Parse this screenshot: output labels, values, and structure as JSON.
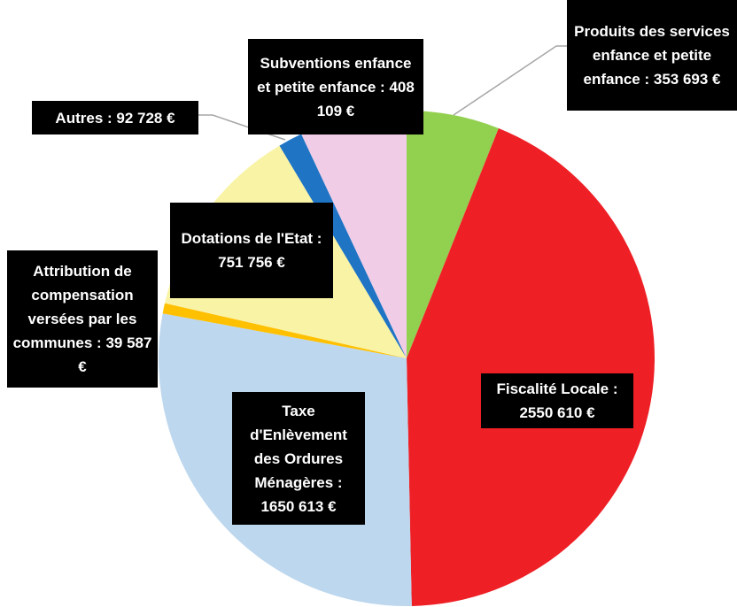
{
  "chart_data": {
    "type": "pie",
    "categories": [
      "Produits des services enfance et petite enfance :",
      "Fiscalité Locale :",
      "Taxe d'Enlèvement des Ordures Ménagères :",
      "Attribution de compensation versées par les communes :",
      "Dotations de l'Etat :",
      "Autres :",
      "Subventions enfance et petite enfance :"
    ],
    "values": [
      353693,
      2550610,
      1650613,
      39587,
      751756,
      92728,
      408109
    ],
    "value_labels": [
      "353 693 €",
      "2550 610 €",
      "1650 613 €",
      "39 587 €",
      "751 756 €",
      "92 728 €",
      "408 109 €"
    ],
    "colors": [
      "#92d050",
      "#ee2026",
      "#bdd7ee",
      "#ffc000",
      "#f9f3a5",
      "#1f74c4",
      "#f0cce6"
    ]
  }
}
